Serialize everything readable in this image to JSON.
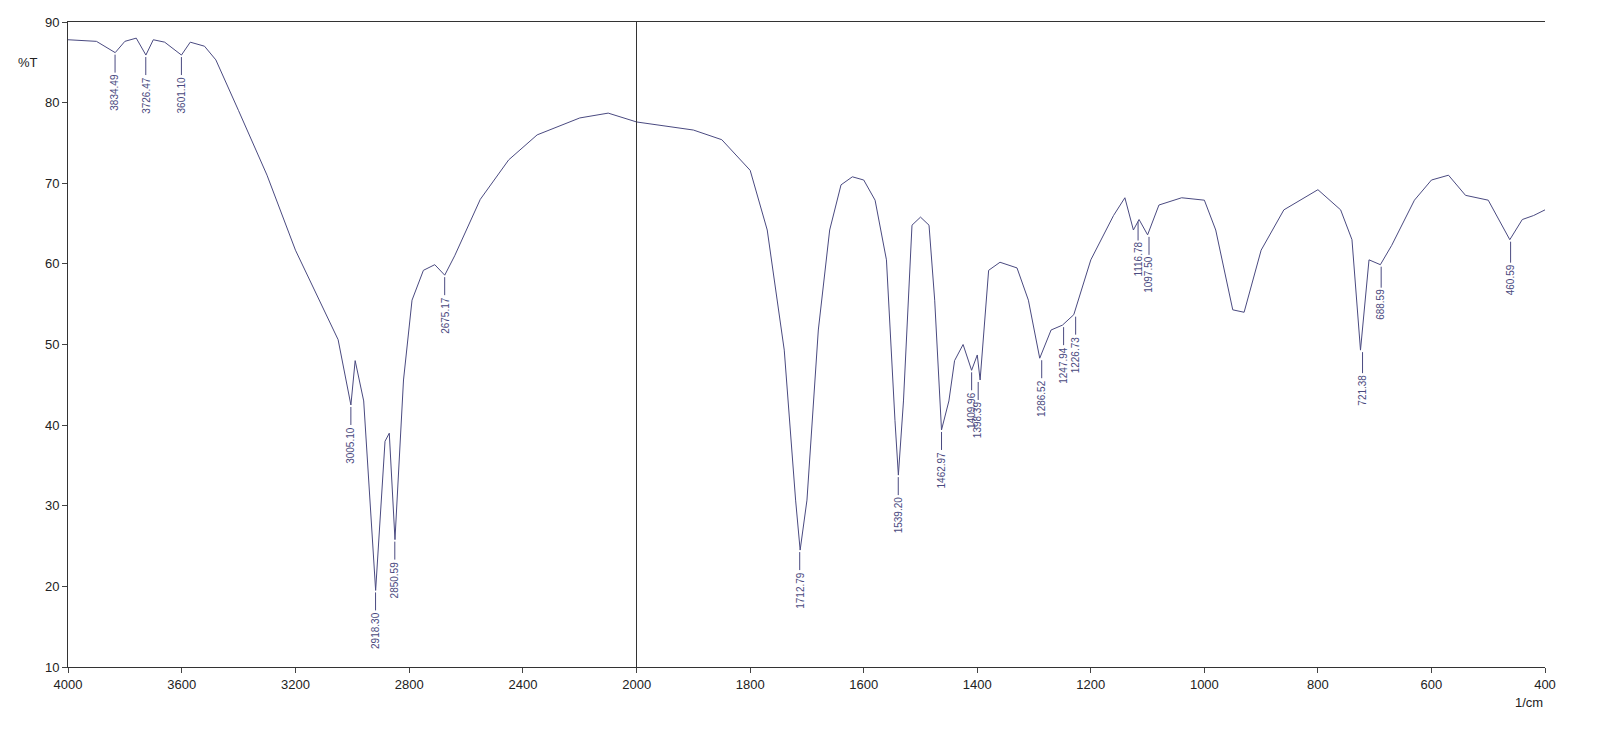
{
  "chart_data": [
    {
      "type": "line",
      "y_label": "%T",
      "color": "#4a4a80",
      "grid": false,
      "tick_labels": true,
      "xlim": [
        4000,
        2000
      ],
      "ylim": [
        10,
        90
      ],
      "xticks": [
        4000,
        3600,
        3200,
        2800,
        2400
      ],
      "yticks": [
        10,
        20,
        30,
        40,
        50,
        60,
        70,
        80,
        90
      ],
      "x": [
        4000,
        3900,
        3834,
        3800,
        3760,
        3726,
        3700,
        3660,
        3601,
        3570,
        3520,
        3480,
        3400,
        3300,
        3200,
        3100,
        3050,
        3005,
        2990,
        2960,
        2918,
        2885,
        2870,
        2850,
        2820,
        2790,
        2750,
        2710,
        2675,
        2640,
        2550,
        2450,
        2350,
        2200,
        2100,
        2000
      ],
      "values": [
        87.8,
        87.6,
        86.2,
        87.6,
        88,
        85.9,
        87.8,
        87.5,
        85.9,
        87.5,
        87,
        85.3,
        79,
        71,
        61.7,
        54.3,
        50.6,
        42.5,
        48,
        43,
        19.5,
        38,
        39,
        25.8,
        45.6,
        55.5,
        59.2,
        59.9,
        58.6,
        61,
        68,
        72.9,
        76,
        78.1,
        78.7,
        77.6
      ],
      "annotations": [
        {
          "x": 3834.49,
          "y": 86.2,
          "text": "3834.49"
        },
        {
          "x": 3726.47,
          "y": 85.9,
          "text": "3726.47"
        },
        {
          "x": 3601.1,
          "y": 85.9,
          "text": "3601.10"
        },
        {
          "x": 3005.1,
          "y": 42.5,
          "text": "3005.10"
        },
        {
          "x": 2918.3,
          "y": 19.5,
          "text": "2918.30"
        },
        {
          "x": 2850.59,
          "y": 25.8,
          "text": "2850.59"
        },
        {
          "x": 2675.17,
          "y": 58.6,
          "text": "2675.17"
        }
      ]
    },
    {
      "type": "line",
      "x_label": "1/cm",
      "color": "#4a4a80",
      "grid": false,
      "tick_labels": "x",
      "xlim": [
        2000,
        400
      ],
      "ylim": [
        10,
        90
      ],
      "xticks": [
        2000,
        1800,
        1600,
        1400,
        1200,
        1000,
        800,
        600,
        400
      ],
      "yticks": [
        10,
        20,
        30,
        40,
        50,
        60,
        70,
        80,
        90
      ],
      "x": [
        2000,
        1900,
        1850,
        1800,
        1770,
        1740,
        1720,
        1712,
        1700,
        1680,
        1660,
        1640,
        1620,
        1600,
        1580,
        1560,
        1545,
        1539,
        1530,
        1515,
        1500,
        1485,
        1475,
        1463,
        1450,
        1440,
        1425,
        1410,
        1400,
        1395,
        1380,
        1360,
        1330,
        1310,
        1290,
        1270,
        1250,
        1230,
        1200,
        1160,
        1140,
        1125,
        1115,
        1100,
        1080,
        1040,
        1000,
        980,
        950,
        930,
        900,
        860,
        800,
        760,
        740,
        725,
        710,
        690,
        670,
        630,
        600,
        570,
        540,
        500,
        462,
        440,
        420,
        400
      ],
      "values": [
        77.6,
        76.6,
        75.4,
        71.6,
        64.2,
        49.3,
        30.7,
        24.5,
        30.7,
        51.8,
        64.2,
        69.8,
        70.8,
        70.4,
        67.9,
        60.5,
        40.6,
        33.8,
        43,
        64.8,
        65.8,
        64.8,
        55.5,
        39.4,
        43,
        48,
        50,
        46.8,
        48.7,
        45.6,
        59.2,
        60.2,
        59.5,
        55.5,
        48.3,
        51.8,
        52.4,
        53.7,
        60.5,
        66,
        68.2,
        64.2,
        65.5,
        63.6,
        67.3,
        68.2,
        67.9,
        64.2,
        54.3,
        54,
        61.7,
        66.7,
        69.2,
        66.7,
        63,
        49.3,
        60.5,
        59.9,
        62.3,
        67.9,
        70.4,
        71,
        68.5,
        67.9,
        63,
        65.5,
        66,
        66.7
      ],
      "annotations": [
        {
          "x": 1712.79,
          "y": 24.5,
          "text": "1712.79"
        },
        {
          "x": 1539.2,
          "y": 33.8,
          "text": "1539.20"
        },
        {
          "x": 1462.97,
          "y": 39.4,
          "text": "1462.97"
        },
        {
          "x": 1409.96,
          "y": 46.8,
          "text": "1409.96"
        },
        {
          "x": 1398.39,
          "y": 45.6,
          "text": "1398.39"
        },
        {
          "x": 1286.52,
          "y": 48.3,
          "text": "1286.52"
        },
        {
          "x": 1247.94,
          "y": 52.4,
          "text": "1247.94"
        },
        {
          "x": 1226.73,
          "y": 53.7,
          "text": "1226.73"
        },
        {
          "x": 1116.78,
          "y": 65.5,
          "text": "1116.78"
        },
        {
          "x": 1097.5,
          "y": 63.6,
          "text": "1097.50"
        },
        {
          "x": 721.38,
          "y": 49.3,
          "text": "721.38"
        },
        {
          "x": 688.59,
          "y": 59.9,
          "text": "688.59"
        },
        {
          "x": 460.59,
          "y": 63,
          "text": "460.59"
        }
      ]
    }
  ]
}
